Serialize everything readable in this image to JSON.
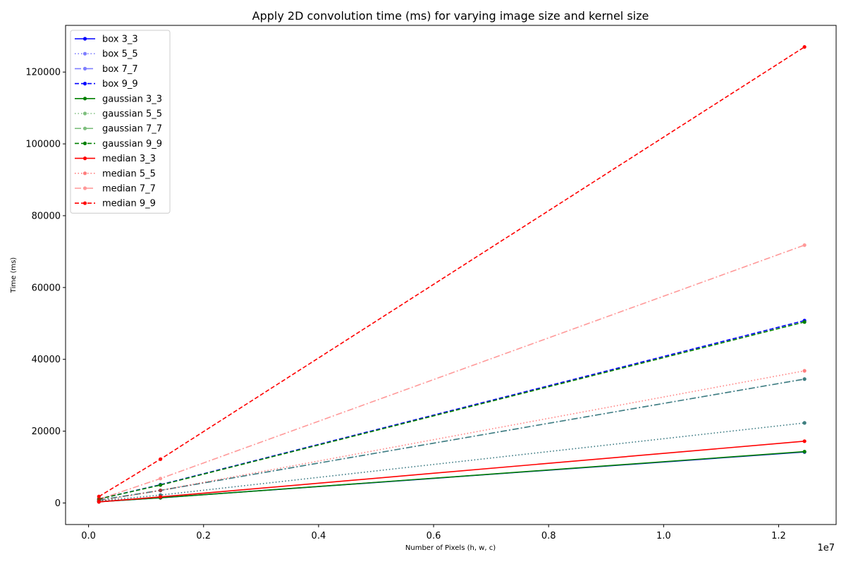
{
  "chart_data": {
    "type": "line",
    "title": "Apply 2D convolution time (ms) for varying image size and kernel size",
    "xlabel": "Number of Pixels (h, w, c)",
    "ylabel": "Time (ms)",
    "x_offset_label": "1e7",
    "xlim": [
      -0.04,
      1.3
    ],
    "ylim": [
      -6000,
      133000
    ],
    "x_ticks": [
      0.0,
      0.2,
      0.4,
      0.6,
      0.8,
      1.0,
      1.2
    ],
    "x_tick_labels": [
      "0.0",
      "0.2",
      "0.4",
      "0.6",
      "0.8",
      "1.0",
      "1.2"
    ],
    "y_ticks": [
      0,
      20000,
      40000,
      60000,
      80000,
      100000,
      120000
    ],
    "y_tick_labels": [
      "0",
      "20000",
      "40000",
      "60000",
      "80000",
      "100000",
      "120000"
    ],
    "grid": false,
    "legend_position": "top-left",
    "x": [
      0.018,
      0.125,
      1.245
    ],
    "series": [
      {
        "name": "box 3_3",
        "values": [
          350,
          1450,
          14200
        ],
        "color": "#0000ff",
        "style": "solid",
        "alpha": 1
      },
      {
        "name": "box 5_5",
        "values": [
          550,
          2200,
          22300
        ],
        "color": "#0000ff",
        "style": "dotted",
        "alpha": 0.5
      },
      {
        "name": "box 7_7",
        "values": [
          800,
          3500,
          34500
        ],
        "color": "#0000ff",
        "style": "dashdot",
        "alpha": 0.5
      },
      {
        "name": "box 9_9",
        "values": [
          1100,
          5100,
          50800
        ],
        "color": "#0000ff",
        "style": "dashed",
        "alpha": 1
      },
      {
        "name": "gaussian 3_3",
        "values": [
          350,
          1450,
          14300
        ],
        "color": "#008000",
        "style": "solid",
        "alpha": 1
      },
      {
        "name": "gaussian 5_5",
        "values": [
          550,
          2200,
          22300
        ],
        "color": "#008000",
        "style": "dotted",
        "alpha": 0.5
      },
      {
        "name": "gaussian 7_7",
        "values": [
          800,
          3500,
          34500
        ],
        "color": "#008000",
        "style": "dashdot",
        "alpha": 0.5
      },
      {
        "name": "gaussian 9_9",
        "values": [
          1100,
          5000,
          50400
        ],
        "color": "#008000",
        "style": "dashed",
        "alpha": 1
      },
      {
        "name": "median 3_3",
        "values": [
          300,
          1700,
          17200
        ],
        "color": "#ff0000",
        "style": "solid",
        "alpha": 1
      },
      {
        "name": "median 5_5",
        "values": [
          600,
          3500,
          36800
        ],
        "color": "#ff0000",
        "style": "dotted",
        "alpha": 0.5
      },
      {
        "name": "median 7_7",
        "values": [
          1000,
          6800,
          71800
        ],
        "color": "#ff0000",
        "style": "dashdot",
        "alpha": 0.4
      },
      {
        "name": "median 9_9",
        "values": [
          1800,
          12200,
          127000
        ],
        "color": "#ff0000",
        "style": "dashed",
        "alpha": 1
      }
    ]
  }
}
